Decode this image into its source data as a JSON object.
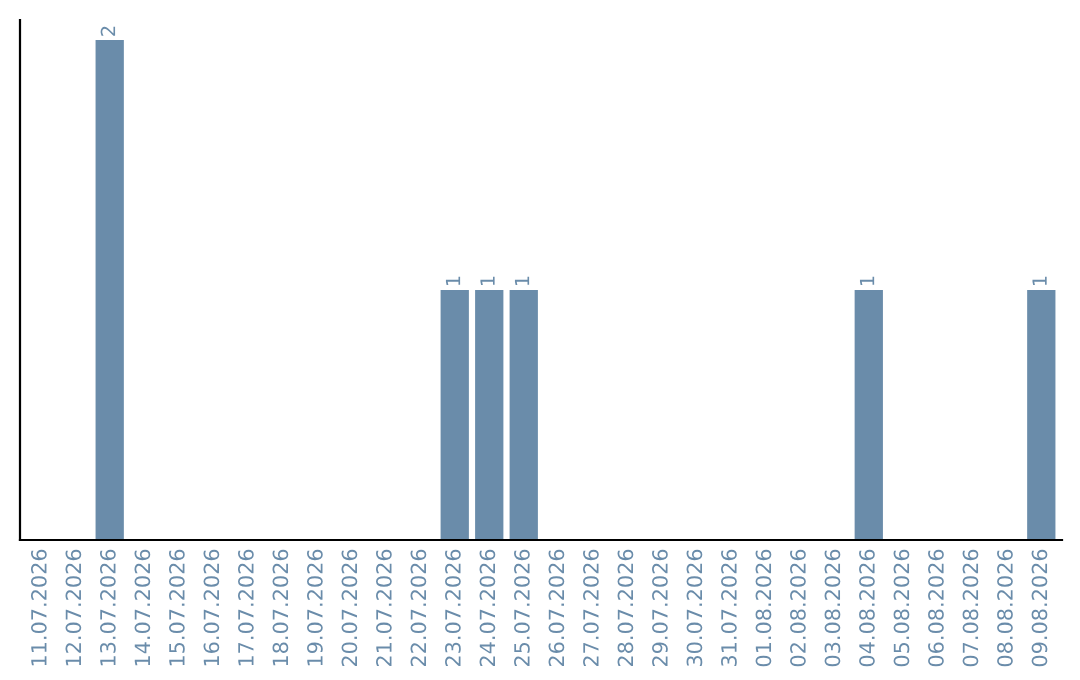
{
  "chart_data": {
    "type": "bar",
    "categories": [
      "11.07.2026",
      "12.07.2026",
      "13.07.2026",
      "14.07.2026",
      "15.07.2026",
      "16.07.2026",
      "17.07.2026",
      "18.07.2026",
      "19.07.2026",
      "20.07.2026",
      "21.07.2026",
      "22.07.2026",
      "23.07.2026",
      "24.07.2026",
      "25.07.2026",
      "26.07.2026",
      "27.07.2026",
      "28.07.2026",
      "29.07.2026",
      "30.07.2026",
      "31.07.2026",
      "01.08.2026",
      "02.08.2026",
      "03.08.2026",
      "04.08.2026",
      "05.08.2026",
      "06.08.2026",
      "07.08.2026",
      "08.08.2026",
      "09.08.2026"
    ],
    "values": [
      0,
      0,
      2,
      0,
      0,
      0,
      0,
      0,
      0,
      0,
      0,
      0,
      1,
      1,
      1,
      0,
      0,
      0,
      0,
      0,
      0,
      0,
      0,
      0,
      1,
      0,
      0,
      0,
      0,
      1
    ],
    "value_labels": [
      null,
      null,
      "2",
      null,
      null,
      null,
      null,
      null,
      null,
      null,
      null,
      null,
      "1",
      "1",
      "1",
      null,
      null,
      null,
      null,
      null,
      null,
      null,
      null,
      null,
      "1",
      null,
      null,
      null,
      null,
      "1"
    ],
    "color": "#6a8caa",
    "tick_labels": "x",
    "grid": false,
    "legend": false
  }
}
